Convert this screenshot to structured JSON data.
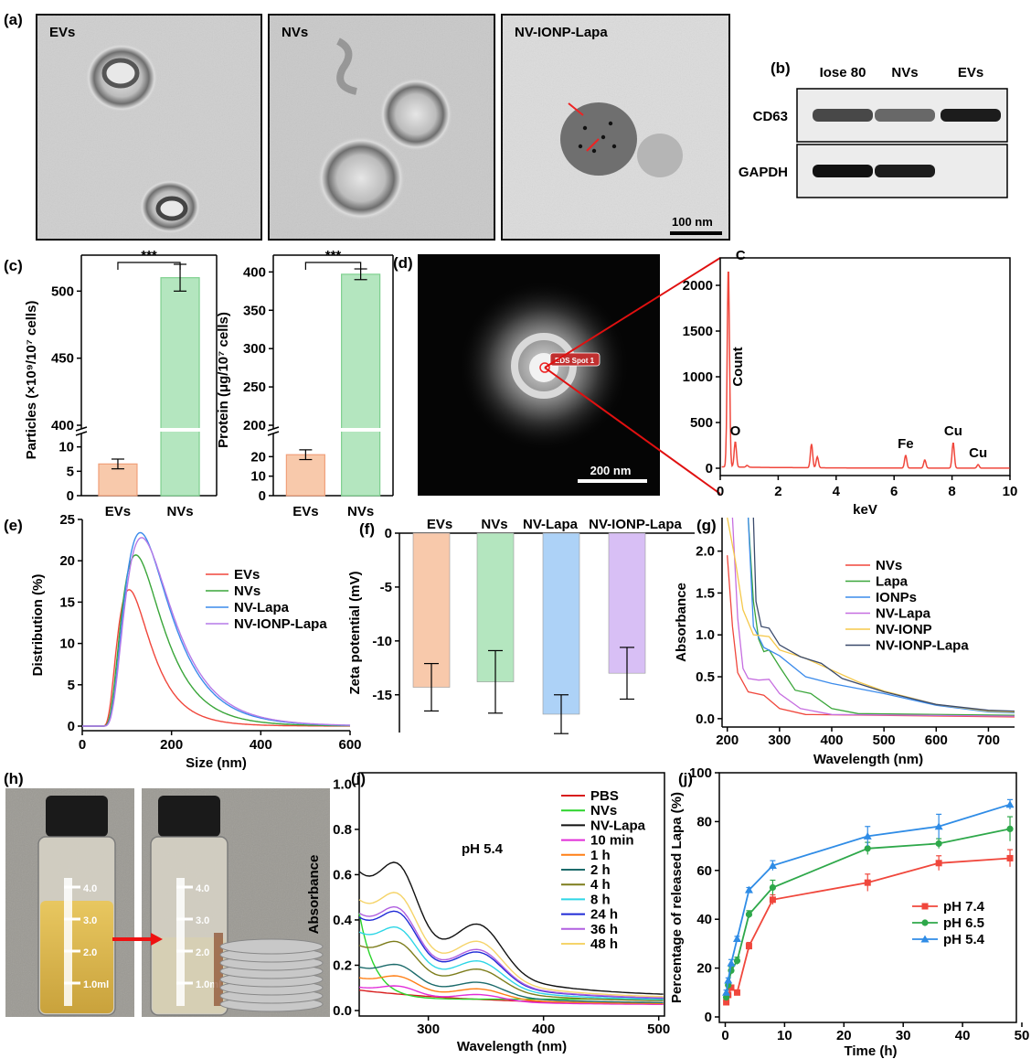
{
  "panels": {
    "a": {
      "label": "(a)",
      "images": [
        {
          "label": "EVs",
          "bg": "#cfcfcf"
        },
        {
          "label": "NVs",
          "bg": "#c9c9c9"
        },
        {
          "label": "NV-IONP-Lapa",
          "bg": "#dcdcdc"
        }
      ],
      "scalebar": "100 nm"
    },
    "b": {
      "label": "(b)",
      "lanes": [
        "Iose 80",
        "NVs",
        "EVs"
      ],
      "rows": [
        {
          "name": "CD63",
          "bands": [
            0.75,
            0.6,
            0.95
          ]
        },
        {
          "name": "GAPDH",
          "bands": [
            1.0,
            0.95,
            0.0
          ]
        }
      ]
    },
    "d": {
      "label": "(d)",
      "scalebar": "200 nm",
      "spot_label": "EDS Spot 1"
    },
    "h": {
      "label": "(h)",
      "vial_marks": [
        "4.0",
        "3.0",
        "2.0",
        "1.0ml"
      ]
    }
  },
  "chart_data": [
    {
      "id": "c1",
      "label": "(c)",
      "type": "bar",
      "categories": [
        "EVs",
        "NVs"
      ],
      "values": [
        6.5,
        510
      ],
      "errors": [
        1,
        10
      ],
      "colors": [
        "#f8c9ab",
        "#b4e6bf"
      ],
      "ylabel": "Particles (×10⁹/10⁷ cells)",
      "ylim_low": [
        0,
        12
      ],
      "yticks_low": [
        0,
        5,
        10
      ],
      "ylim_high": [
        400,
        520
      ],
      "yticks_high": [
        400,
        450,
        500
      ],
      "significance": "***"
    },
    {
      "id": "c2",
      "type": "bar",
      "categories": [
        "EVs",
        "NVs"
      ],
      "values": [
        21,
        397
      ],
      "errors": [
        2.5,
        7
      ],
      "colors": [
        "#f8c9ab",
        "#b4e6bf"
      ],
      "ylabel": "Protein (μg/10⁷ cells)",
      "ylim_low": [
        0,
        30
      ],
      "yticks_low": [
        0,
        10,
        20
      ],
      "ylim_high": [
        200,
        410
      ],
      "yticks_high": [
        200,
        250,
        300,
        350,
        400
      ],
      "significance": "***"
    },
    {
      "id": "d",
      "type": "line",
      "xlabel": "keV",
      "ylabel": "Count",
      "xlim": [
        0,
        10
      ],
      "ylim": [
        0,
        2300
      ],
      "xticks": [
        0,
        2,
        4,
        6,
        8,
        10
      ],
      "yticks": [
        0,
        500,
        1000,
        1500,
        2000
      ],
      "peaks": [
        {
          "x": 0.28,
          "y": 2200,
          "label": "C"
        },
        {
          "x": 0.52,
          "y": 280,
          "label": "O"
        },
        {
          "x": 0.93,
          "y": 20,
          "label": ""
        },
        {
          "x": 3.15,
          "y": 260,
          "label": ""
        },
        {
          "x": 3.35,
          "y": 120,
          "label": ""
        },
        {
          "x": 6.4,
          "y": 140,
          "label": "Fe"
        },
        {
          "x": 7.06,
          "y": 90,
          "label": ""
        },
        {
          "x": 8.04,
          "y": 280,
          "label": "Cu"
        },
        {
          "x": 8.9,
          "y": 40,
          "label": "Cu"
        }
      ],
      "color": "#f0473c"
    },
    {
      "id": "e",
      "label": "(e)",
      "type": "line",
      "xlabel": "Size (nm)",
      "ylabel": "Distribution (%)",
      "xlim": [
        0,
        600
      ],
      "ylim": [
        0,
        25
      ],
      "xticks": [
        0,
        200,
        400,
        600
      ],
      "yticks": [
        0,
        5,
        10,
        15,
        20,
        25
      ],
      "series": [
        {
          "name": "EVs",
          "peak_x": 105,
          "peak_y": 16.5,
          "color": "#f0473c"
        },
        {
          "name": "NVs",
          "peak_x": 120,
          "peak_y": 20.7,
          "color": "#3aa63a"
        },
        {
          "name": "NV-Lapa",
          "peak_x": 130,
          "peak_y": 23.4,
          "color": "#3b8beb"
        },
        {
          "name": "NV-IONP-Lapa",
          "peak_x": 133,
          "peak_y": 22.8,
          "color": "#b57ae8"
        }
      ]
    },
    {
      "id": "f",
      "label": "(f)",
      "type": "bar",
      "categories": [
        "EVs",
        "NVs",
        "NV-Lapa",
        "NV-IONP-Lapa"
      ],
      "values": [
        -14.3,
        -13.8,
        -16.8,
        -13.0
      ],
      "errors": [
        2.2,
        2.9,
        1.8,
        2.4
      ],
      "colors": [
        "#f8c9ab",
        "#b4e6bf",
        "#add2f7",
        "#d8bff5"
      ],
      "ylabel": "Zeta potential (mV)",
      "ylim": [
        -18.5,
        0
      ],
      "yticks": [
        0,
        -5,
        -10,
        -15
      ]
    },
    {
      "id": "g",
      "label": "(g)",
      "type": "line",
      "xlabel": "Wavelength (nm)",
      "ylabel": "Absorbance",
      "xlim": [
        190,
        750
      ],
      "ylim": [
        -0.1,
        2.4
      ],
      "xticks": [
        200,
        300,
        400,
        500,
        600,
        700
      ],
      "yticks": [
        0.0,
        0.5,
        1.0,
        1.5,
        2.0
      ],
      "series": [
        {
          "name": "NVs",
          "color": "#f0473c",
          "points": [
            [
              200,
              1.95
            ],
            [
              210,
              1.1
            ],
            [
              220,
              0.55
            ],
            [
              240,
              0.32
            ],
            [
              270,
              0.28
            ],
            [
              300,
              0.12
            ],
            [
              350,
              0.05
            ],
            [
              750,
              0.02
            ]
          ]
        },
        {
          "name": "Lapa",
          "color": "#3aa63a",
          "points": [
            [
              240,
              2.4
            ],
            [
              250,
              1.4
            ],
            [
              260,
              0.95
            ],
            [
              270,
              0.8
            ],
            [
              280,
              0.82
            ],
            [
              300,
              0.62
            ],
            [
              330,
              0.34
            ],
            [
              360,
              0.3
            ],
            [
              400,
              0.12
            ],
            [
              450,
              0.06
            ],
            [
              750,
              0.04
            ]
          ]
        },
        {
          "name": "IONPs",
          "color": "#3b8beb",
          "points": [
            [
              240,
              2.4
            ],
            [
              250,
              1.1
            ],
            [
              270,
              0.85
            ],
            [
              300,
              0.75
            ],
            [
              350,
              0.5
            ],
            [
              400,
              0.42
            ],
            [
              450,
              0.36
            ],
            [
              500,
              0.3
            ],
            [
              600,
              0.16
            ],
            [
              700,
              0.08
            ],
            [
              750,
              0.07
            ]
          ]
        },
        {
          "name": "NV-Lapa",
          "color": "#c66ee0",
          "points": [
            [
              210,
              2.4
            ],
            [
              220,
              1.2
            ],
            [
              230,
              0.6
            ],
            [
              240,
              0.48
            ],
            [
              260,
              0.46
            ],
            [
              280,
              0.47
            ],
            [
              300,
              0.3
            ],
            [
              340,
              0.12
            ],
            [
              400,
              0.05
            ],
            [
              750,
              0.03
            ]
          ]
        },
        {
          "name": "NV-IONP",
          "color": "#f5c84a",
          "points": [
            [
              200,
              2.4
            ],
            [
              215,
              1.9
            ],
            [
              230,
              1.3
            ],
            [
              250,
              1.0
            ],
            [
              280,
              0.98
            ],
            [
              300,
              0.82
            ],
            [
              350,
              0.72
            ],
            [
              400,
              0.58
            ],
            [
              450,
              0.44
            ],
            [
              500,
              0.33
            ],
            [
              600,
              0.17
            ],
            [
              700,
              0.09
            ],
            [
              750,
              0.08
            ]
          ]
        },
        {
          "name": "NV-IONP-Lapa",
          "color": "#3a4a6b",
          "points": [
            [
              250,
              2.4
            ],
            [
              255,
              1.4
            ],
            [
              265,
              1.1
            ],
            [
              280,
              1.08
            ],
            [
              300,
              0.88
            ],
            [
              340,
              0.74
            ],
            [
              380,
              0.66
            ],
            [
              420,
              0.48
            ],
            [
              500,
              0.32
            ],
            [
              600,
              0.17
            ],
            [
              700,
              0.1
            ],
            [
              750,
              0.09
            ]
          ]
        }
      ]
    },
    {
      "id": "i",
      "label": "(i)",
      "type": "line",
      "xlabel": "Wavelength (nm)",
      "ylabel": "Absorbance",
      "xlim": [
        240,
        505
      ],
      "ylim": [
        0,
        1.05
      ],
      "xticks": [
        300,
        400,
        500
      ],
      "yticks": [
        0.0,
        0.2,
        0.4,
        0.6,
        0.8,
        1.0
      ],
      "annotation": "pH 5.4",
      "series": [
        {
          "name": "PBS",
          "color": "#d81d1d",
          "scale": 0.07
        },
        {
          "name": "NVs",
          "color": "#2bd42b",
          "scale": 0.0
        },
        {
          "name": "NV-Lapa",
          "color": "#111111",
          "scale": 1.0
        },
        {
          "name": "10 min",
          "color": "#e12dd8",
          "scale": 0.14
        },
        {
          "name": "1 h",
          "color": "#ff7f15",
          "scale": 0.21
        },
        {
          "name": "2 h",
          "color": "#1c6b6b",
          "scale": 0.29
        },
        {
          "name": "4 h",
          "color": "#7d7d1c",
          "scale": 0.45
        },
        {
          "name": "8 h",
          "color": "#2ed6e6",
          "scale": 0.55
        },
        {
          "name": "24 h",
          "color": "#1f2ad6",
          "scale": 0.66
        },
        {
          "name": "36 h",
          "color": "#b05fe0",
          "scale": 0.69
        },
        {
          "name": "48 h",
          "color": "#f5d46a",
          "scale": 0.79
        }
      ]
    },
    {
      "id": "j",
      "label": "(j)",
      "type": "line",
      "xlabel": "Time (h)",
      "ylabel": "Percentage of released Lapa (%)",
      "xlim": [
        -1,
        50
      ],
      "ylim": [
        0,
        100
      ],
      "xticks": [
        0,
        10,
        20,
        30,
        40,
        50
      ],
      "yticks": [
        0,
        20,
        40,
        60,
        80,
        100
      ],
      "x": [
        0.17,
        0.5,
        1,
        2,
        4,
        8,
        24,
        36,
        48
      ],
      "series": [
        {
          "name": "pH 7.4",
          "color": "#f0473c",
          "marker": "square",
          "values": [
            6,
            9,
            12,
            10,
            29,
            48,
            55,
            63,
            65
          ],
          "errors": [
            1,
            1,
            1,
            1,
            1.5,
            2,
            3.5,
            3,
            3.5
          ]
        },
        {
          "name": "pH 6.5",
          "color": "#2ea84a",
          "marker": "circle",
          "values": [
            8,
            13,
            19,
            23,
            42,
            53,
            69,
            71,
            77
          ],
          "errors": [
            1,
            1,
            1.5,
            1.5,
            1.5,
            3,
            2.5,
            2,
            5
          ]
        },
        {
          "name": "pH 5.4",
          "color": "#2f8ce6",
          "marker": "triangle",
          "values": [
            10,
            15,
            22,
            32,
            52,
            62,
            74,
            78,
            87
          ],
          "errors": [
            1,
            1,
            1.5,
            1,
            1,
            2,
            4,
            5,
            2
          ]
        }
      ]
    }
  ]
}
